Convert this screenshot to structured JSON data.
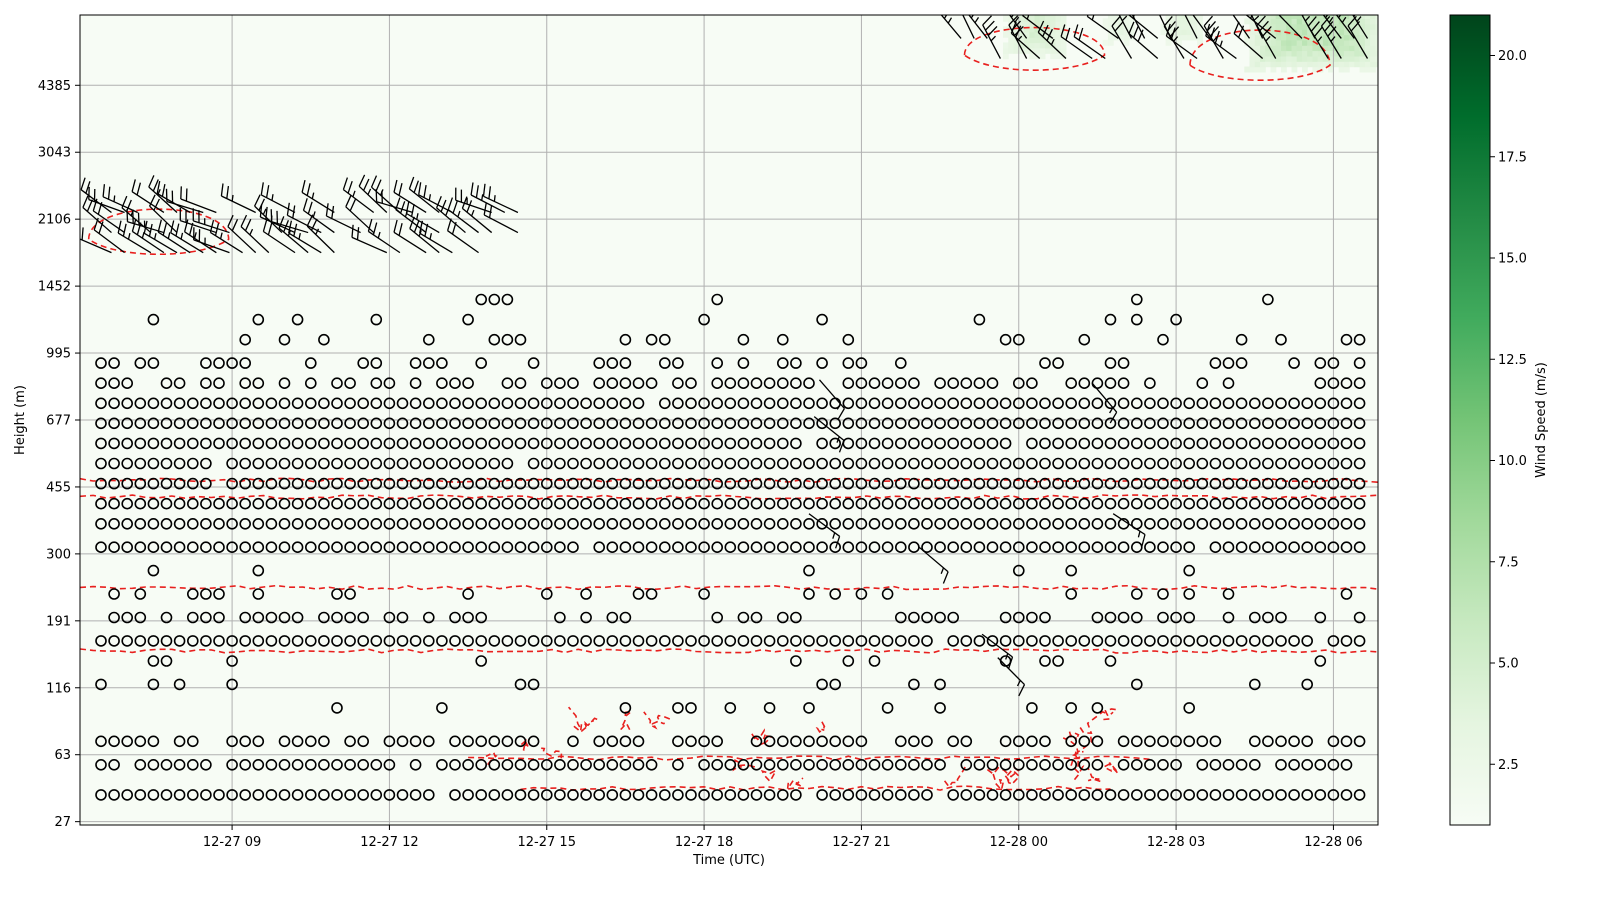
{
  "chart_data": {
    "type": "heatmap",
    "xlabel": "Time (UTC)",
    "ylabel": "Height (m)",
    "colorbar_label": "Wind Speed (m/s)",
    "grid": true,
    "x_ticks": [
      "12-27 09",
      "12-27 12",
      "12-27 15",
      "12-27 18",
      "12-27 21",
      "12-28 00",
      "12-28 03",
      "12-28 06"
    ],
    "x_tick_hours": [
      9,
      12,
      15,
      18,
      21,
      24,
      27,
      30
    ],
    "x_range_hours": [
      6.1,
      30.85
    ],
    "y_ticks": [
      "27",
      "63",
      "116",
      "191",
      "300",
      "455",
      "677",
      "995",
      "1452",
      "2106",
      "3043",
      "4385"
    ],
    "y_range_index": [
      -0.05,
      12.05
    ],
    "colorbar_ticks": [
      "2.5",
      "5.0",
      "7.5",
      "10.0",
      "12.5",
      "15.0",
      "17.5",
      "20.0"
    ],
    "colorbar_tick_values": [
      2.5,
      5.0,
      7.5,
      10.0,
      12.5,
      15.0,
      17.5,
      20.0
    ],
    "colorbar_range": [
      1.0,
      21.0
    ],
    "colormap": [
      "#f7fcf5",
      "#e5f5e0",
      "#c7e9c0",
      "#a1d99b",
      "#74c476",
      "#41ab5d",
      "#238b45",
      "#006d2c",
      "#00441b"
    ],
    "circle_marker_meaning": "calm",
    "contour_color": "#e8201e",
    "high_wind_regions": [
      {
        "start_hour": 23.7,
        "end_hour": 24.9,
        "base_level": 11.4,
        "peak_speed": 6.0
      },
      {
        "start_hour": 25.6,
        "end_hour": 26.2,
        "base_level": 11.6,
        "peak_speed": 5.0
      },
      {
        "start_hour": 26.7,
        "end_hour": 27.5,
        "base_level": 11.6,
        "peak_speed": 5.5
      },
      {
        "start_hour": 28.3,
        "end_hour": 30.9,
        "base_level": 11.2,
        "peak_speed": 7.0
      }
    ],
    "barb_regions": [
      {
        "start_hour": 6.7,
        "end_hour": 14.6,
        "bottom_level": 8.5,
        "top_level": 9.4,
        "direction_deg": 300,
        "speed_kt": 15
      },
      {
        "start_hour": 22.9,
        "end_hour": 30.8,
        "bottom_level": 11.4,
        "top_level": 12.0,
        "direction_deg": 320,
        "speed_kt": 20
      }
    ],
    "calm_rows": [
      {
        "level": 0.4,
        "coverage": 0.97
      },
      {
        "level": 0.85,
        "coverage": 0.88
      },
      {
        "level": 1.2,
        "coverage": 0.78
      },
      {
        "level": 1.7,
        "coverage": 0.15
      },
      {
        "level": 2.05,
        "coverage": 0.18
      },
      {
        "level": 2.4,
        "coverage": 0.1
      },
      {
        "level": 2.7,
        "coverage": 0.98
      },
      {
        "level": 3.05,
        "coverage": 0.55
      },
      {
        "level": 3.4,
        "coverage": 0.25
      },
      {
        "level": 3.75,
        "coverage": 0.05
      },
      {
        "level": 4.1,
        "coverage": 0.99
      },
      {
        "level": 4.45,
        "coverage": 0.99
      },
      {
        "level": 4.75,
        "coverage": 0.99
      },
      {
        "level": 5.05,
        "coverage": 0.99
      },
      {
        "level": 5.35,
        "coverage": 0.99
      },
      {
        "level": 5.65,
        "coverage": 0.99
      },
      {
        "level": 5.95,
        "coverage": 0.99
      },
      {
        "level": 6.25,
        "coverage": 0.99
      },
      {
        "level": 6.55,
        "coverage": 0.6
      },
      {
        "level": 6.85,
        "coverage": 0.4
      },
      {
        "level": 7.2,
        "coverage": 0.2
      },
      {
        "level": 7.5,
        "coverage": 0.12
      },
      {
        "level": 7.8,
        "coverage": 0.06
      }
    ],
    "contour_lines": [
      {
        "level": 0.5,
        "start_hour": 14.5,
        "end_hour": 25.8
      },
      {
        "level": 0.95,
        "start_hour": 13.5,
        "end_hour": 26.5
      },
      {
        "level": 2.55,
        "start_hour": 6.1,
        "end_hour": 30.85
      },
      {
        "level": 3.5,
        "start_hour": 6.1,
        "end_hour": 30.85
      },
      {
        "level": 4.85,
        "start_hour": 6.1,
        "end_hour": 30.85
      },
      {
        "level": 5.1,
        "start_hour": 6.1,
        "end_hour": 30.85
      }
    ]
  }
}
